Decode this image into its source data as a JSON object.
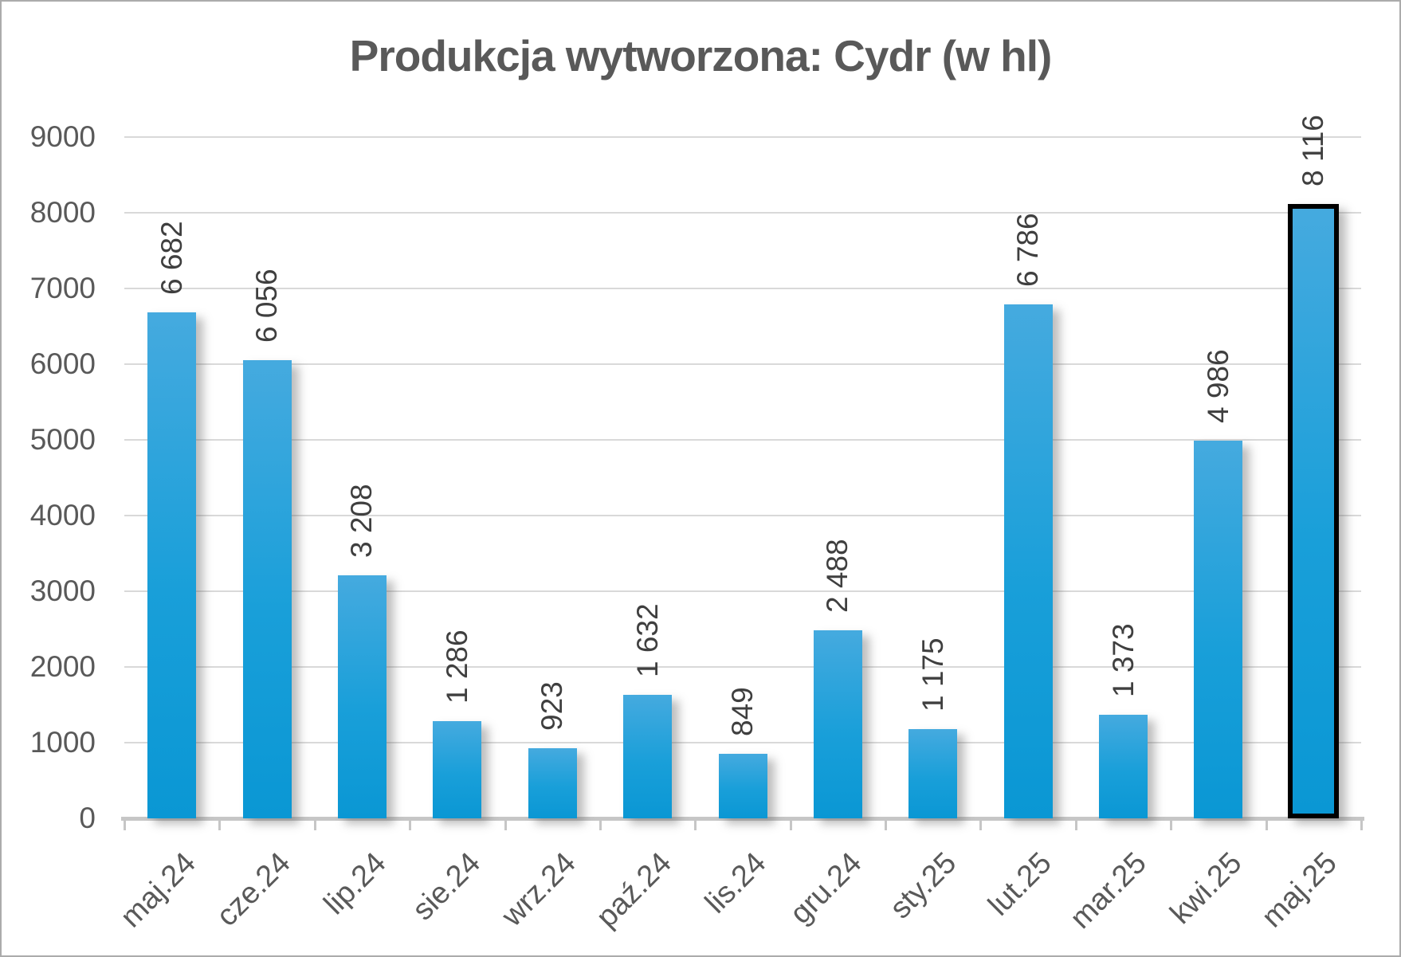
{
  "chart_data": {
    "type": "bar",
    "title": "Produkcja wytworzona: Cydr (w hl)",
    "categories": [
      "maj.24",
      "cze.24",
      "lip.24",
      "sie.24",
      "wrz.24",
      "paź.24",
      "lis.24",
      "gru.24",
      "sty.25",
      "lut.25",
      "mar.25",
      "kwi.25",
      "maj.25"
    ],
    "values": [
      6682,
      6056,
      3208,
      1286,
      923,
      1632,
      849,
      2488,
      1175,
      6786,
      1373,
      4986,
      8116
    ],
    "data_labels": [
      "6 682",
      "6 056",
      "3 208",
      "1 286",
      "923",
      "1 632",
      "849",
      "2 488",
      "1 175",
      "6 786",
      "1 373",
      "4 986",
      "8 116"
    ],
    "xlabel": "",
    "ylabel": "",
    "ylim": [
      0,
      9000
    ],
    "yticks": [
      0,
      1000,
      2000,
      3000,
      4000,
      5000,
      6000,
      7000,
      8000,
      9000
    ],
    "grid": true,
    "legend_position": "none",
    "highlight_index": 12,
    "colors": {
      "bar_top": "#45aadf",
      "bar_bottom": "#0a97d4",
      "highlight_border": "#000000",
      "gridline": "#d9d9d9",
      "axis": "#c6c6c6",
      "axis_label": "#595959",
      "value_label": "#3f3f3f",
      "title": "#595959",
      "frame_border": "#ababab"
    }
  }
}
